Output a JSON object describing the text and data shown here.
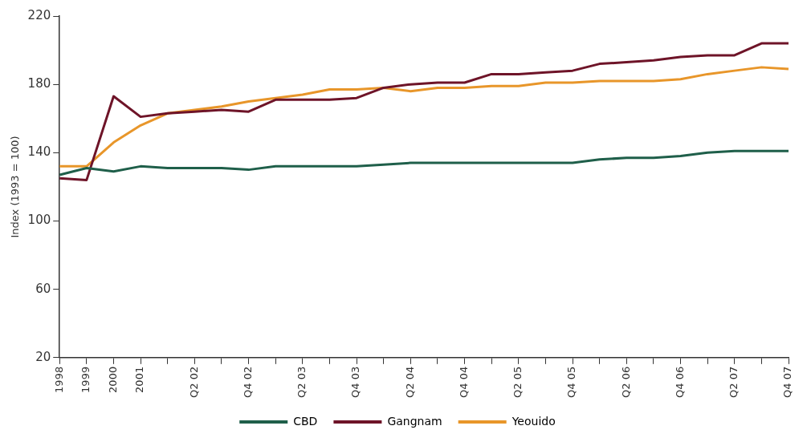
{
  "chart_data": {
    "type": "line",
    "ylabel": "Index (1993 = 100)",
    "categories": [
      "1998",
      "1999",
      "2000",
      "2001",
      null,
      "Q2 02",
      null,
      "Q4 02",
      null,
      "Q2 03",
      null,
      "Q4 03",
      null,
      "Q2 04",
      null,
      "Q4 04",
      null,
      "Q2 05",
      null,
      "Q4 05",
      null,
      "Q2 06",
      null,
      "Q4 06",
      null,
      "Q2 07",
      null,
      "Q4 07"
    ],
    "series": [
      {
        "name": "CBD",
        "color": "#1f5f4a",
        "values": [
          127,
          131,
          129,
          132,
          131,
          131,
          131,
          130,
          132,
          132,
          132,
          132,
          133,
          134,
          134,
          134,
          134,
          134,
          134,
          134,
          136,
          137,
          137,
          138,
          140,
          141,
          141,
          141
        ]
      },
      {
        "name": "Gangnam",
        "color": "#6e1428",
        "values": [
          125,
          124,
          173,
          161,
          163,
          164,
          165,
          164,
          171,
          171,
          171,
          172,
          178,
          180,
          181,
          181,
          186,
          186,
          187,
          188,
          192,
          193,
          194,
          196,
          197,
          197,
          204,
          204
        ]
      },
      {
        "name": "Yeouido",
        "color": "#e8962a",
        "values": [
          132,
          132,
          146,
          156,
          163,
          165,
          167,
          170,
          172,
          174,
          177,
          177,
          178,
          176,
          178,
          178,
          179,
          179,
          181,
          181,
          182,
          182,
          182,
          183,
          186,
          188,
          190,
          189
        ]
      }
    ],
    "ylim": [
      20,
      220
    ],
    "yticks": [
      20,
      60,
      100,
      140,
      180,
      220
    ],
    "grid": false,
    "legend": "bottom",
    "marker": "none",
    "line_style": "solid"
  }
}
